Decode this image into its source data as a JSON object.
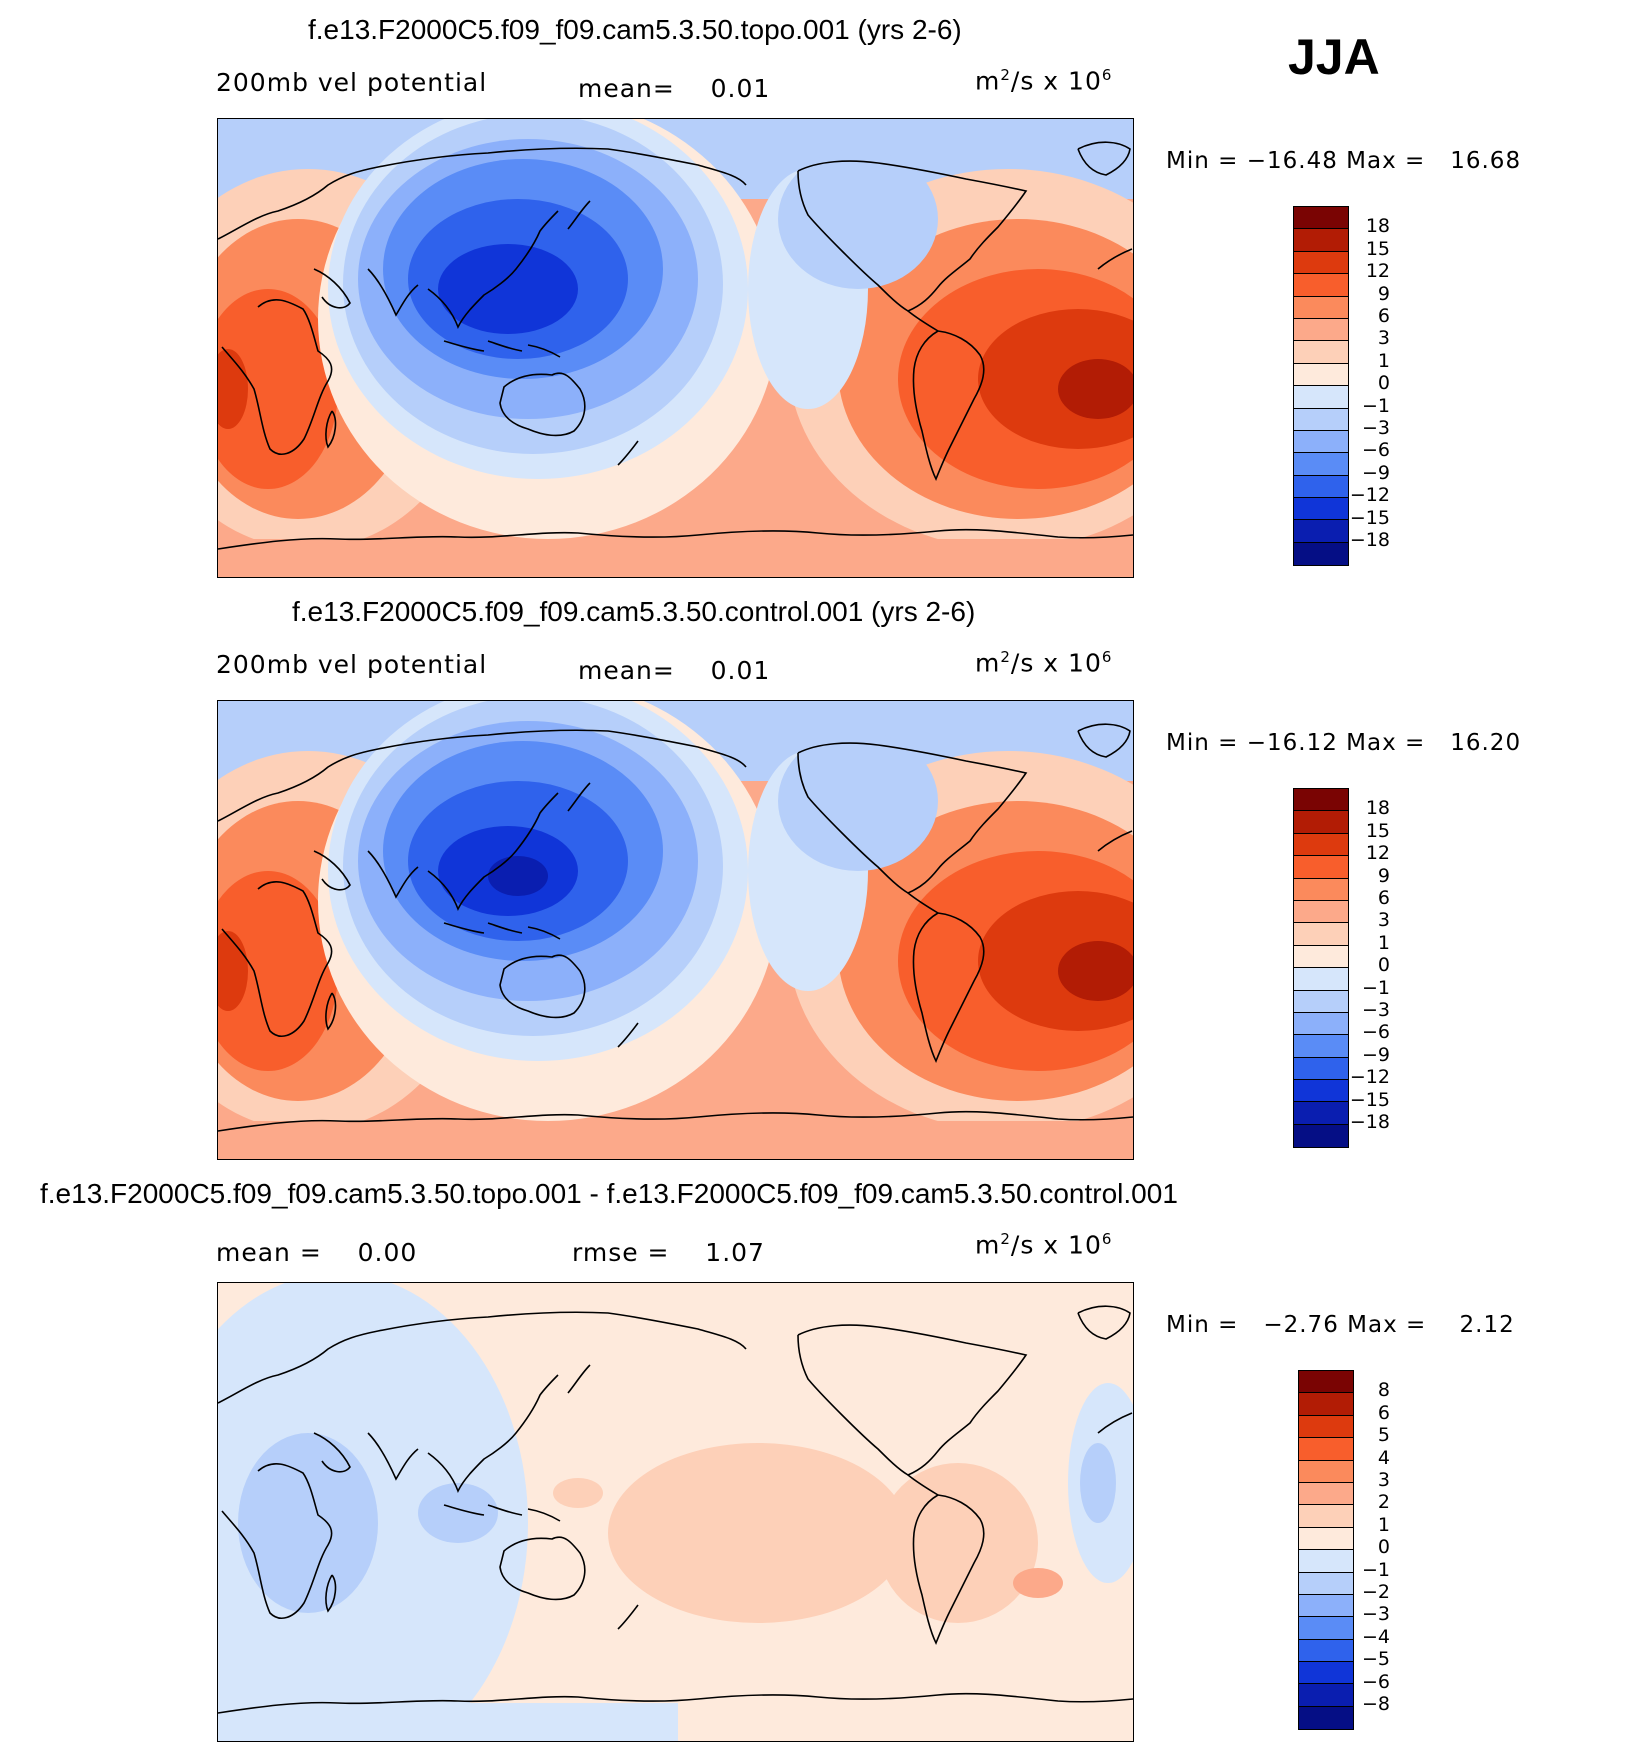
{
  "season": "JJA",
  "panels": [
    {
      "title": "f.e13.F2000C5.f09_f09.cam5.3.50.topo.001 (yrs 2-6)",
      "left_label": "200mb vel potential",
      "center_label": "mean=",
      "center_value": "0.01",
      "units_main": "m",
      "units_sup": "2",
      "units_mid": "/s x 10",
      "units_exp": "6",
      "min_label": "Min =",
      "min_value": "−16.48",
      "max_label": "Max =",
      "max_value": "16.68",
      "levels": [
        "18",
        "15",
        "12",
        "9",
        "6",
        "3",
        "1",
        "0",
        "−1",
        "−3",
        "−6",
        "−9",
        "−12",
        "−15",
        "−18"
      ]
    },
    {
      "title": "f.e13.F2000C5.f09_f09.cam5.3.50.control.001 (yrs 2-6)",
      "left_label": "200mb vel potential",
      "center_label": "mean=",
      "center_value": "0.01",
      "units_main": "m",
      "units_sup": "2",
      "units_mid": "/s x 10",
      "units_exp": "6",
      "min_label": "Min =",
      "min_value": "−16.12",
      "max_label": "Max =",
      "max_value": "16.20",
      "levels": [
        "18",
        "15",
        "12",
        "9",
        "6",
        "3",
        "1",
        "0",
        "−1",
        "−3",
        "−6",
        "−9",
        "−12",
        "−15",
        "−18"
      ]
    },
    {
      "title": "f.e13.F2000C5.f09_f09.cam5.3.50.topo.001 - f.e13.F2000C5.f09_f09.cam5.3.50.control.001",
      "left_label": "mean =",
      "left_value": "0.00",
      "center_label": "rmse =",
      "center_value": "1.07",
      "units_main": "m",
      "units_sup": "2",
      "units_mid": "/s x 10",
      "units_exp": "6",
      "min_label": "Min =",
      "min_value": "−2.76",
      "max_label": "Max =",
      "max_value": "2.12",
      "levels": [
        "8",
        "6",
        "5",
        "4",
        "3",
        "2",
        "1",
        "0",
        "−1",
        "−2",
        "−3",
        "−4",
        "−5",
        "−6",
        "−8"
      ]
    }
  ],
  "colors": {
    "scale": [
      "#7a0403",
      "#b21c05",
      "#dd3a0e",
      "#f85e2c",
      "#fb8a5c",
      "#fca98a",
      "#fdd0b8",
      "#feeadc",
      "#d6e6fb",
      "#b6cffa",
      "#8cb0fa",
      "#5a8cf6",
      "#2f62ec",
      "#1035d8",
      "#0a1eb0",
      "#050e85"
    ],
    "line": "#000000"
  }
}
